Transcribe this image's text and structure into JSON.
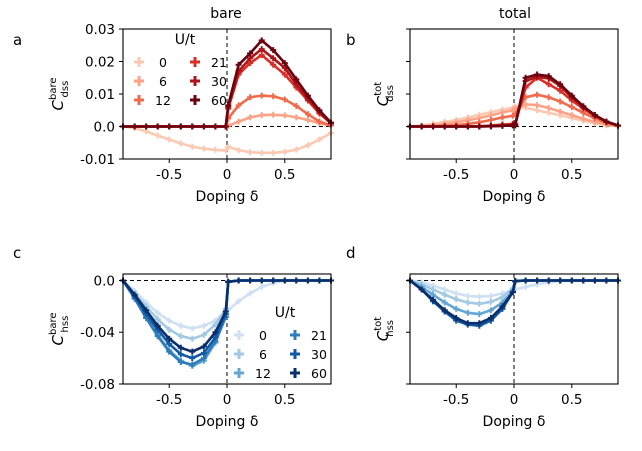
{
  "column_titles": [
    "bare",
    "total"
  ],
  "x_common": [
    -0.9,
    -0.8,
    -0.7,
    -0.6,
    -0.5,
    -0.4,
    -0.3,
    -0.2,
    -0.1,
    -0.01,
    0.01,
    0.1,
    0.2,
    0.3,
    0.4,
    0.5,
    0.6,
    0.7,
    0.8,
    0.9
  ],
  "legend": {
    "title": "U/t",
    "labels": [
      "0",
      "6",
      "12",
      "21",
      "30",
      "60"
    ]
  },
  "colors": {
    "reds": [
      "#fcc9b3",
      "#fca286",
      "#f06a4c",
      "#d92f26",
      "#ae1419",
      "#6b0210"
    ],
    "blues": [
      "#cfe0f2",
      "#a2c9e3",
      "#63a6d4",
      "#2e7dbb",
      "#125aa3",
      "#0a2f6b"
    ]
  },
  "chart_data": [
    {
      "type": "line",
      "panel_label": "a",
      "column_title": "bare",
      "ylabel": "C^bare_dss",
      "ylabel_main": "C",
      "ylabel_sup": "bare",
      "ylabel_sub": "dss",
      "xlabel": "Doping δ",
      "xlim": [
        -0.9,
        0.9
      ],
      "ylim": [
        -0.01,
        0.03
      ],
      "xticks": [
        -0.5,
        0,
        0.5
      ],
      "xtick_labels": [
        "-0.5",
        "0",
        "0.5"
      ],
      "yticks": [
        -0.01,
        0,
        0.01,
        0.02,
        0.03
      ],
      "ytick_labels": [
        "-0.01",
        "0.0",
        "0.01",
        "0.02",
        "0.03"
      ],
      "show_ytick_labels": true,
      "show_legend": true,
      "palette": "reds",
      "series": [
        {
          "name": "0",
          "values": [
            0,
            -0.0005,
            -0.0015,
            -0.0028,
            -0.004,
            -0.0052,
            -0.0062,
            -0.0068,
            -0.0072,
            -0.0074,
            -0.0062,
            -0.0073,
            -0.0079,
            -0.0081,
            -0.0081,
            -0.0078,
            -0.0071,
            -0.0058,
            -0.004,
            -0.002
          ]
        },
        {
          "name": "6",
          "values": [
            0,
            0,
            0,
            0,
            0,
            0,
            0,
            0,
            0,
            0,
            0.0002,
            0.0015,
            0.0028,
            0.0035,
            0.0036,
            0.0034,
            0.0028,
            0.002,
            0.001,
            0.0003
          ]
        },
        {
          "name": "12",
          "values": [
            0,
            0,
            0,
            0,
            0,
            0,
            0,
            0,
            0,
            0,
            0.0025,
            0.0065,
            0.009,
            0.0095,
            0.0093,
            0.0083,
            0.0063,
            0.0038,
            0.0015,
            0.0003
          ]
        },
        {
          "name": "21",
          "values": [
            0,
            0,
            0,
            0,
            0,
            0,
            0,
            0,
            0,
            0,
            0.0055,
            0.016,
            0.0195,
            0.022,
            0.019,
            0.016,
            0.012,
            0.008,
            0.004,
            0.001
          ]
        },
        {
          "name": "30",
          "values": [
            0,
            0,
            0,
            0,
            0,
            0,
            0,
            0,
            0,
            0,
            0.006,
            0.017,
            0.021,
            0.0238,
            0.021,
            0.018,
            0.013,
            0.0085,
            0.0045,
            0.001
          ]
        },
        {
          "name": "60",
          "values": [
            0,
            0,
            0,
            0,
            0,
            0,
            0,
            0,
            0,
            0,
            0.0065,
            0.019,
            0.0225,
            0.0265,
            0.0235,
            0.0195,
            0.0145,
            0.0095,
            0.005,
            0.0012
          ]
        }
      ]
    },
    {
      "type": "line",
      "panel_label": "b",
      "column_title": "total",
      "ylabel": "C^tot_dss",
      "ylabel_main": "C",
      "ylabel_sup": "tot",
      "ylabel_sub": "dss",
      "xlabel": "Doping δ",
      "xlim": [
        -0.9,
        0.9
      ],
      "ylim": [
        -0.01,
        0.03
      ],
      "xticks": [
        -0.5,
        0,
        0.5
      ],
      "xtick_labels": [
        "-0.5",
        "0",
        "0.5"
      ],
      "yticks": [
        -0.01,
        0,
        0.01,
        0.02,
        0.03
      ],
      "ytick_labels": [],
      "show_ytick_labels": false,
      "show_legend": false,
      "palette": "reds",
      "series": [
        {
          "name": "0",
          "values": [
            0,
            0.0003,
            0.0008,
            0.0014,
            0.002,
            0.0028,
            0.0036,
            0.0044,
            0.0052,
            0.0058,
            0.0062,
            0.0058,
            0.005,
            0.0042,
            0.0034,
            0.0026,
            0.0018,
            0.001,
            0.0004,
            0.0001
          ]
        },
        {
          "name": "6",
          "values": [
            0,
            0.0001,
            0.0004,
            0.0008,
            0.0013,
            0.0019,
            0.0026,
            0.0034,
            0.0043,
            0.005,
            0.0055,
            0.0068,
            0.0066,
            0.0057,
            0.0046,
            0.0035,
            0.0024,
            0.0014,
            0.0006,
            0.0001
          ]
        },
        {
          "name": "12",
          "values": [
            0,
            0,
            0.0001,
            0.0002,
            0.0004,
            0.0008,
            0.0013,
            0.002,
            0.0028,
            0.0033,
            0.0038,
            0.009,
            0.0098,
            0.009,
            0.0077,
            0.006,
            0.0042,
            0.0025,
            0.0011,
            0.0002
          ]
        },
        {
          "name": "21",
          "values": [
            0,
            0,
            0,
            0,
            0,
            0,
            0.0001,
            0.0003,
            0.0006,
            0.0008,
            0.0008,
            0.012,
            0.015,
            0.013,
            0.011,
            0.008,
            0.0055,
            0.0032,
            0.0014,
            0.0003
          ]
        },
        {
          "name": "30",
          "values": [
            0,
            0,
            0,
            0,
            0,
            0,
            0,
            0.0001,
            0.0002,
            0.0004,
            0.0004,
            0.014,
            0.0153,
            0.0148,
            0.0125,
            0.009,
            0.006,
            0.0035,
            0.0015,
            0.0003
          ]
        },
        {
          "name": "60",
          "values": [
            0,
            0,
            0,
            0,
            0,
            0,
            0,
            0.0001,
            0.0002,
            0.0004,
            0.0004,
            0.015,
            0.016,
            0.0155,
            0.013,
            0.0095,
            0.0062,
            0.0035,
            0.0015,
            0.0003
          ]
        }
      ]
    },
    {
      "type": "line",
      "panel_label": "c",
      "column_title": "bare",
      "ylabel": "C^bare_hss",
      "ylabel_main": "C",
      "ylabel_sup": "bare",
      "ylabel_sub": "hss",
      "xlabel": "Doping δ",
      "xlim": [
        -0.9,
        0.9
      ],
      "ylim": [
        -0.08,
        0.005
      ],
      "xticks": [
        -0.5,
        0,
        0.5
      ],
      "xtick_labels": [
        "-0.5",
        "0",
        "0.5"
      ],
      "yticks": [
        -0.08,
        -0.04,
        0.0
      ],
      "ytick_labels": [
        "-0.08",
        "-0.04",
        "0.0"
      ],
      "show_ytick_labels": true,
      "show_legend": true,
      "palette": "blues",
      "series": [
        {
          "name": "0",
          "values": [
            0,
            -0.008,
            -0.017,
            -0.025,
            -0.031,
            -0.035,
            -0.037,
            -0.035,
            -0.031,
            -0.024,
            -0.023,
            -0.016,
            -0.01,
            -0.005,
            -0.002,
            0,
            0,
            0,
            0,
            0
          ]
        },
        {
          "name": "6",
          "values": [
            0,
            -0.01,
            -0.02,
            -0.03,
            -0.038,
            -0.043,
            -0.045,
            -0.042,
            -0.034,
            -0.022,
            -0.001,
            0,
            0,
            0,
            0,
            0,
            0,
            0,
            0,
            0
          ]
        },
        {
          "name": "12",
          "values": [
            0,
            -0.013,
            -0.028,
            -0.042,
            -0.054,
            -0.062,
            -0.066,
            -0.062,
            -0.048,
            -0.028,
            -0.001,
            0,
            0,
            0,
            0,
            0,
            0,
            0,
            0,
            0
          ]
        },
        {
          "name": "21",
          "values": [
            0,
            -0.014,
            -0.029,
            -0.043,
            -0.055,
            -0.063,
            -0.065,
            -0.06,
            -0.047,
            -0.028,
            -0.001,
            0,
            0,
            0,
            0,
            0,
            0,
            0,
            0,
            0
          ]
        },
        {
          "name": "30",
          "values": [
            0,
            -0.012,
            -0.026,
            -0.038,
            -0.049,
            -0.057,
            -0.06,
            -0.056,
            -0.044,
            -0.026,
            -0.001,
            0,
            0,
            0,
            0,
            0,
            0,
            0,
            0,
            0
          ]
        },
        {
          "name": "60",
          "values": [
            0,
            -0.011,
            -0.023,
            -0.035,
            -0.045,
            -0.052,
            -0.055,
            -0.051,
            -0.04,
            -0.024,
            -0.001,
            0,
            0,
            0,
            0,
            0,
            0,
            0,
            0,
            0
          ]
        }
      ]
    },
    {
      "type": "line",
      "panel_label": "d",
      "column_title": "total",
      "ylabel": "C^tot_hss",
      "ylabel_main": "C",
      "ylabel_sup": "tot",
      "ylabel_sub": "hss",
      "xlabel": "Doping δ",
      "xlim": [
        -0.9,
        0.9
      ],
      "ylim": [
        -0.08,
        0.005
      ],
      "xticks": [
        -0.5,
        0,
        0.5
      ],
      "xtick_labels": [
        "-0.5",
        "0",
        "0.5"
      ],
      "yticks": [
        -0.08,
        -0.04,
        0.0
      ],
      "ytick_labels": [],
      "show_ytick_labels": false,
      "show_legend": false,
      "palette": "blues",
      "series": [
        {
          "name": "0",
          "values": [
            0,
            -0.0015,
            -0.004,
            -0.007,
            -0.01,
            -0.012,
            -0.0125,
            -0.012,
            -0.01,
            -0.0075,
            -0.007,
            -0.005,
            -0.003,
            -0.0015,
            -0.0005,
            0,
            0,
            0,
            0,
            0
          ]
        },
        {
          "name": "6",
          "values": [
            0,
            -0.003,
            -0.007,
            -0.011,
            -0.0145,
            -0.017,
            -0.018,
            -0.0165,
            -0.013,
            -0.006,
            -0.0005,
            0,
            0,
            0,
            0,
            0,
            0,
            0,
            0,
            0
          ]
        },
        {
          "name": "12",
          "values": [
            0,
            -0.005,
            -0.011,
            -0.017,
            -0.022,
            -0.025,
            -0.026,
            -0.023,
            -0.017,
            -0.008,
            -0.0005,
            0,
            0,
            0,
            0,
            0,
            0,
            0,
            0,
            0
          ]
        },
        {
          "name": "21",
          "values": [
            0,
            -0.007,
            -0.016,
            -0.024,
            -0.03,
            -0.034,
            -0.034,
            -0.03,
            -0.021,
            -0.009,
            -0.0005,
            0,
            0,
            0,
            0,
            0,
            0,
            0,
            0,
            0
          ]
        },
        {
          "name": "30",
          "values": [
            0,
            -0.007,
            -0.016,
            -0.024,
            -0.031,
            -0.034,
            -0.035,
            -0.031,
            -0.022,
            -0.009,
            -0.0005,
            0,
            0,
            0,
            0,
            0,
            0,
            0,
            0,
            0
          ]
        },
        {
          "name": "60",
          "values": [
            0,
            -0.007,
            -0.015,
            -0.023,
            -0.029,
            -0.033,
            -0.033,
            -0.029,
            -0.02,
            -0.009,
            -0.0005,
            0,
            0,
            0,
            0,
            0,
            0,
            0,
            0,
            0
          ]
        }
      ]
    }
  ]
}
